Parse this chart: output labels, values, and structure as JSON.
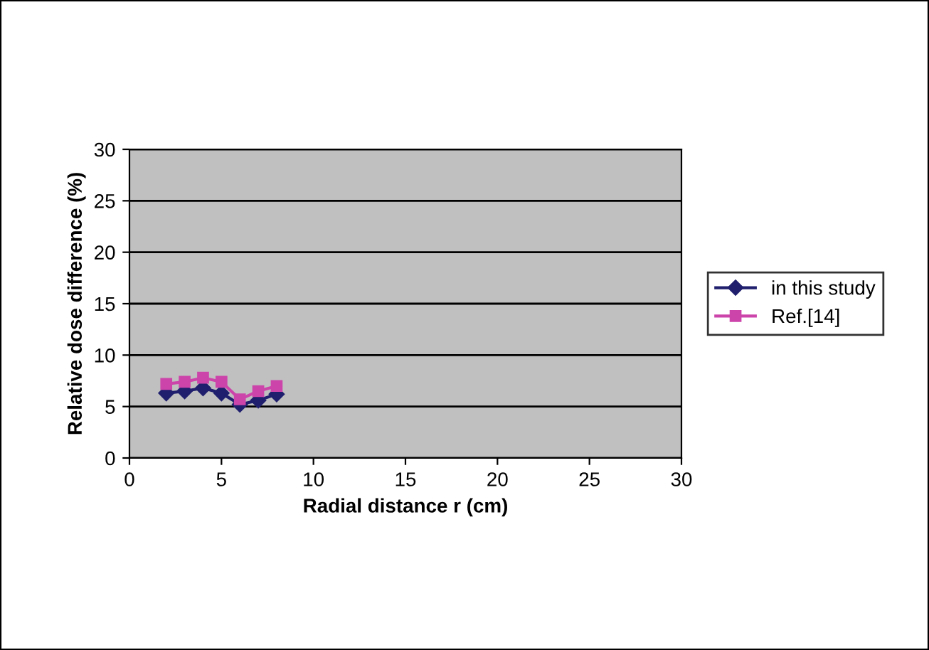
{
  "chart_data": {
    "type": "line",
    "xlabel": "Radial distance r (cm)",
    "ylabel": "Relative dose difference (%)",
    "series": [
      {
        "name": "in this study",
        "color": "#1f1f6e",
        "marker": "diamond",
        "x": [
          2,
          3,
          4,
          5,
          6,
          7,
          8
        ],
        "values": [
          6.3,
          6.5,
          6.8,
          6.3,
          5.2,
          5.6,
          6.2
        ]
      },
      {
        "name": "Ref.[14]",
        "color": "#cc44aa",
        "marker": "square",
        "x": [
          2,
          3,
          4,
          5,
          6,
          7,
          8
        ],
        "values": [
          7.2,
          7.4,
          7.8,
          7.4,
          5.7,
          6.5,
          7.0
        ]
      }
    ],
    "xlim": [
      0,
      30
    ],
    "xticks": [
      0,
      5,
      10,
      15,
      20,
      25,
      30
    ],
    "ylim": [
      0,
      30
    ],
    "yticks": [
      0,
      5,
      10,
      15,
      20,
      25,
      30
    ],
    "grid": "y",
    "legend": "right"
  }
}
